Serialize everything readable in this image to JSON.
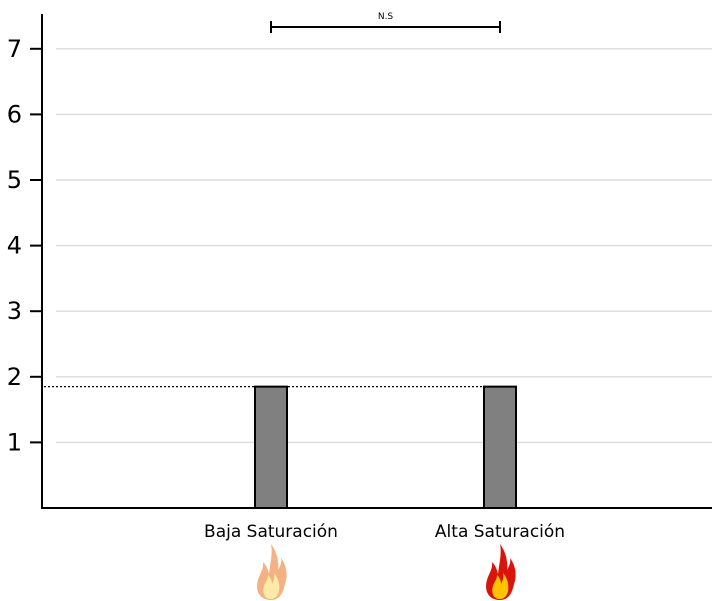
{
  "chart_data": {
    "type": "bar",
    "title": "",
    "xlabel": "",
    "ylabel": "",
    "categories": [
      "Baja Saturación",
      "Alta Saturación"
    ],
    "values": [
      1.85,
      1.85
    ],
    "ylim": [
      0,
      7.6
    ],
    "yticks": [
      1,
      2,
      3,
      4,
      5,
      6,
      7
    ],
    "grid": true,
    "grid_axis": "y",
    "legend": "none",
    "bar_color": "#808080",
    "bar_edge_color": "#000000",
    "reference_line": {
      "value": 1.85,
      "style": "dotted"
    },
    "significance": {
      "label": "N.S",
      "between": [
        "Baja Saturación",
        "Alta Saturación"
      ]
    },
    "category_icons": [
      {
        "category": "Baja Saturación",
        "icon": "fire-icon-light",
        "outer_color": "#f4b183",
        "inner_color": "#fde9a8"
      },
      {
        "category": "Alta Saturación",
        "icon": "fire-icon-saturated",
        "outer_color": "#d9150b",
        "inner_color": "#ffc400"
      }
    ]
  }
}
